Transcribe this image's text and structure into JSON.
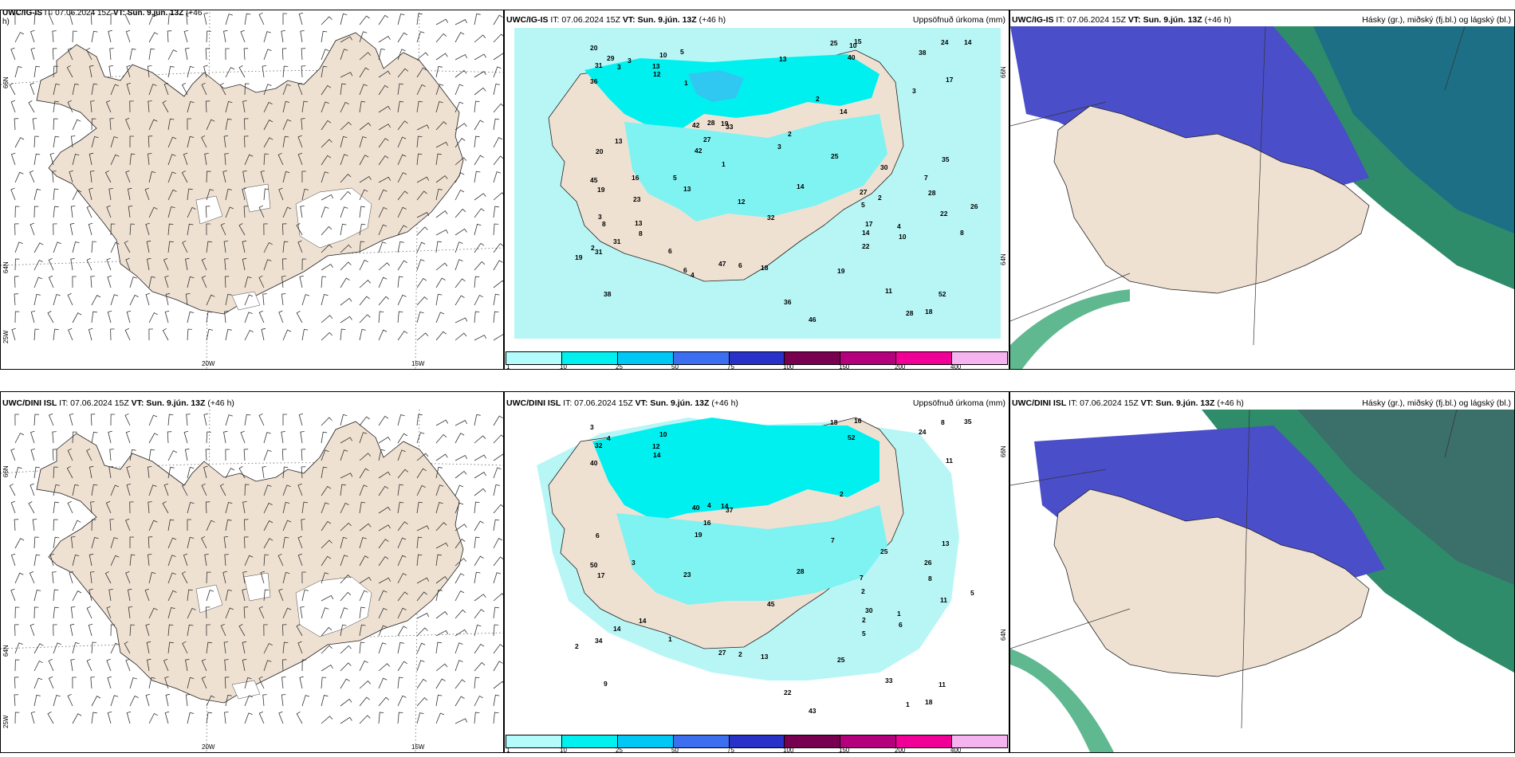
{
  "panels": [
    {
      "title_model": "UWC/IG-IS",
      "title_rest": " IT: 07.06.2024 15Z ",
      "title_vt": "VT: Sun. 9.jún. 13Z",
      "title_tail": " (+46",
      "title_tail2": "h)",
      "right": ""
    },
    {
      "title_model": "UWC/IG-IS",
      "title_rest": " IT: 07.06.2024 15Z ",
      "title_vt": "VT: Sun. 9.jún. 13Z",
      "title_tail": " (+46 h)",
      "right": "Uppsöfnuð úrkoma (mm)"
    },
    {
      "title_model": "UWC/IG-IS",
      "title_rest": " IT: 07.06.2024 15Z ",
      "title_vt": "VT: Sun. 9.jún. 13Z",
      "title_tail": " (+46 h)",
      "right": "Hásky (gr.), miðský (fj.bl.) og lágský (bl.)"
    },
    {
      "title_model": "UWC/DINI ISL",
      "title_rest": " IT: 07.06.2024 15Z ",
      "title_vt": "VT: Sun. 9.jún. 13Z",
      "title_tail": " (+46 h)",
      "right": ""
    },
    {
      "title_model": "UWC/DINI ISL",
      "title_rest": " IT: 07.06.2024 15Z ",
      "title_vt": "VT: Sun. 9.jún. 13Z",
      "title_tail": " (+46 h)",
      "right": "Uppsöfnuð úrkoma (mm)"
    },
    {
      "title_model": "UWC/DINI ISL",
      "title_rest": " IT: 07.06.2024 15Z ",
      "title_vt": "VT: Sun. 9.jún. 13Z",
      "title_tail": " (+46 h)",
      "right": "Hásky (gr.), miðský (fj.bl.) og lágský (bl.)"
    }
  ],
  "axes": {
    "lat66": "66N",
    "lat64": "64N",
    "lon25": "25W",
    "lon20": "20W",
    "lon15": "15W"
  },
  "colorbar": {
    "labels": [
      "1",
      "10",
      "25",
      "50",
      "75",
      "100",
      "150",
      "200",
      "400"
    ],
    "colors": [
      "#b4fbfb",
      "#00f0f0",
      "#00c8f5",
      "#3c6ef0",
      "#2832c8",
      "#780050",
      "#b4007d",
      "#f00096",
      "#f5b4f0"
    ]
  },
  "colors": {
    "land": "#efe1d2",
    "rain_light": "#b8f6f6",
    "rain_mid": "#00f0f0",
    "rain_high": "#30c8f0",
    "cloud_low": "#3c3cc0",
    "cloud_mid": "#1a7a9a",
    "cloud_high": "#2e8c6a"
  },
  "precip_top": [
    "5",
    "28",
    "38",
    "10",
    "33",
    "11",
    "31",
    "40",
    "42",
    "46",
    "36",
    "45",
    "31",
    "52",
    "47",
    "35",
    "32",
    "14",
    "19",
    "8",
    "14",
    "38",
    "42",
    "22",
    "25",
    "13",
    "17",
    "19",
    "12",
    "30",
    "36",
    "19",
    "27",
    "13",
    "7",
    "10",
    "14",
    "16",
    "18",
    "31",
    "17",
    "15",
    "18",
    "6",
    "4",
    "6",
    "19",
    "29",
    "25",
    "20",
    "26",
    "28",
    "24",
    "27",
    "22",
    "28",
    "14",
    "20",
    "23",
    "3",
    "2",
    "1",
    "2",
    "3",
    "13",
    "13",
    "12",
    "13",
    "5",
    "2",
    "2",
    "5",
    "1",
    "3",
    "3",
    "10",
    "8",
    "6",
    "4",
    "3",
    "8"
  ],
  "precip_bottom": [
    "2",
    "8",
    "9",
    "10",
    "37",
    "33",
    "34",
    "52",
    "40",
    "43",
    "40",
    "50",
    "32",
    "11",
    "27",
    "13",
    "45",
    "28",
    "14",
    "14",
    "35",
    "24",
    "19",
    "11",
    "18",
    "12",
    "30",
    "17",
    "14",
    "25",
    "22",
    "25",
    "16",
    "23",
    "26",
    "6",
    "2",
    "3",
    "13",
    "14",
    "11",
    "16",
    "18",
    "2",
    "1",
    "1",
    "2",
    "4",
    "7",
    "6",
    "5",
    "4",
    "8",
    "7",
    "5",
    "1",
    "2",
    "3"
  ]
}
